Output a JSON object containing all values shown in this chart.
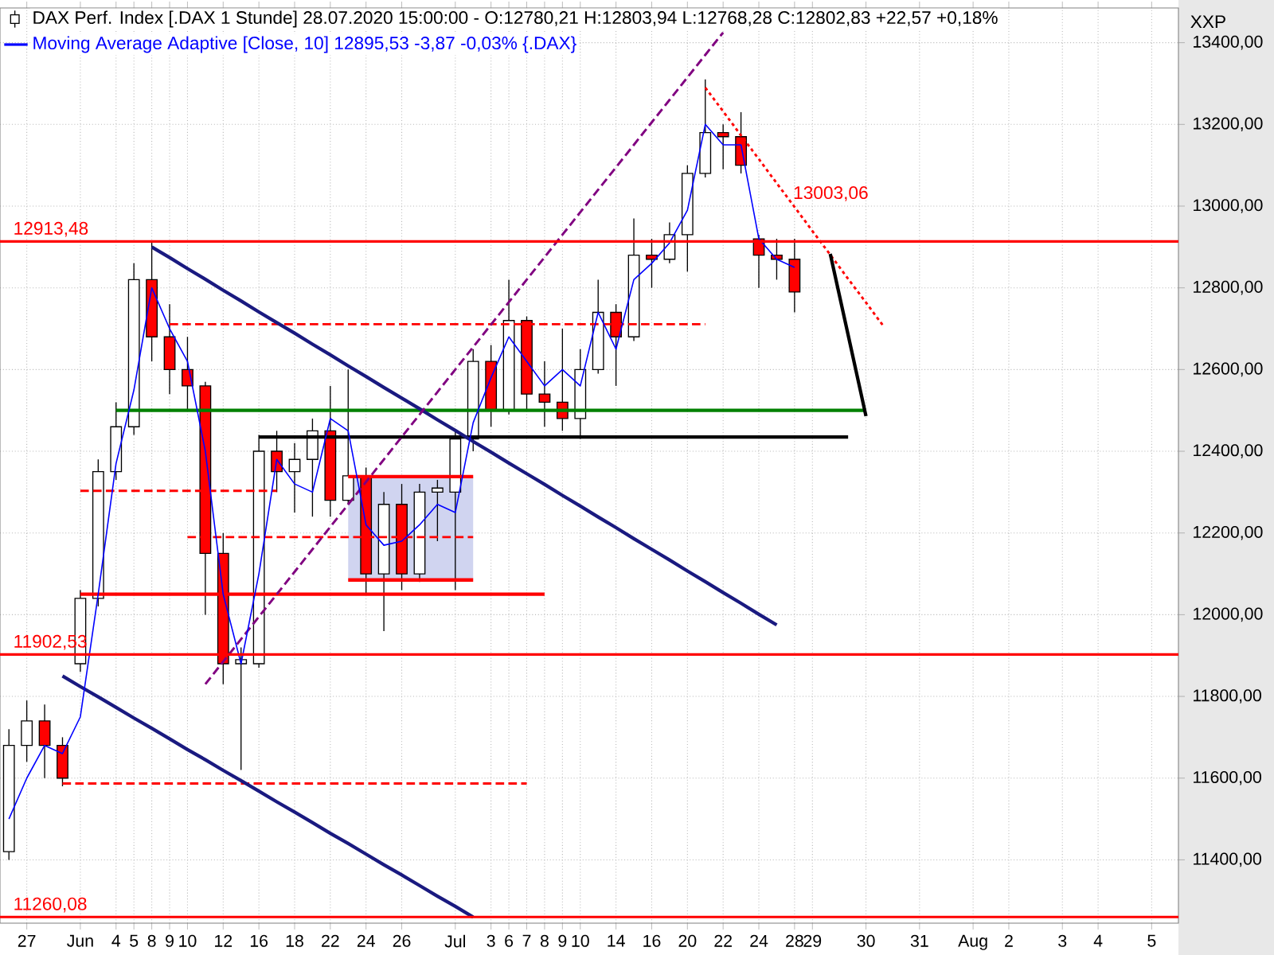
{
  "chart_data": {
    "type": "candlestick",
    "ylabel": "XXP",
    "categories": [
      null,
      "27",
      null,
      null,
      "Jun",
      null,
      "4",
      "5",
      "8",
      "9",
      "10",
      null,
      "12",
      null,
      "16",
      null,
      "18",
      null,
      "22",
      null,
      "24",
      null,
      "26",
      null,
      null,
      "Jul",
      null,
      "3",
      "6",
      "7",
      "8",
      "9",
      "10",
      null,
      "14",
      null,
      "16",
      null,
      "20",
      null,
      "22",
      null,
      "24",
      null,
      "28",
      "29",
      null,
      null,
      "30",
      null,
      null,
      "31",
      null,
      null,
      "Aug",
      null,
      "2",
      null,
      null,
      "3",
      null,
      "4",
      null,
      null,
      "5",
      null
    ],
    "ylim": [
      11245,
      13485
    ],
    "yticks": [
      {
        "value": 11400,
        "label": "11400,00"
      },
      {
        "value": 11600,
        "label": "11600,00"
      },
      {
        "value": 11800,
        "label": "11800,00"
      },
      {
        "value": 12000,
        "label": "12000,00"
      },
      {
        "value": 12200,
        "label": "12200,00"
      },
      {
        "value": 12400,
        "label": "12400,00"
      },
      {
        "value": 12600,
        "label": "12600,00"
      },
      {
        "value": 12800,
        "label": "12800,00"
      },
      {
        "value": 13000,
        "label": "13000,00"
      },
      {
        "value": 13200,
        "label": "13200,00"
      },
      {
        "value": 13400,
        "label": "13400,00"
      }
    ],
    "grid": true,
    "legend": "top left",
    "series": [
      {
        "type": "line",
        "color": "#ff0000",
        "line_style": "solid",
        "values": [
          null,
          null,
          null,
          null,
          null,
          null,
          null,
          null,
          null,
          null,
          null,
          null,
          null,
          null,
          null,
          null,
          null,
          null,
          null,
          12338,
          12338,
          12338,
          12338,
          12338,
          12338,
          12338,
          12338,
          null,
          null,
          null,
          null,
          null,
          null,
          null,
          null,
          null,
          null,
          null,
          null,
          null,
          null,
          null,
          null,
          null,
          null,
          null,
          null,
          null,
          null,
          null,
          null,
          null,
          null,
          null,
          null,
          null,
          null,
          null,
          null,
          null,
          null,
          null,
          null,
          null,
          null,
          null
        ],
        "lower": [
          null,
          null,
          null,
          null,
          null,
          null,
          null,
          null,
          null,
          null,
          null,
          null,
          null,
          null,
          null,
          null,
          null,
          null,
          null,
          12085,
          12085,
          12085,
          12085,
          12085,
          12085,
          12085,
          12085,
          null,
          null,
          null,
          null,
          null,
          null,
          null,
          null,
          null,
          null,
          null,
          null,
          null,
          null,
          null,
          null,
          null,
          null,
          null,
          null,
          null,
          null,
          null,
          null,
          null,
          null,
          null,
          null,
          null,
          null,
          null,
          null,
          null,
          null,
          null,
          null,
          null,
          null,
          null
        ],
        "upper": [
          null,
          null,
          null,
          null,
          null,
          null,
          null,
          null,
          null,
          null,
          null,
          null,
          null,
          null,
          null,
          null,
          null,
          null,
          null,
          12338,
          12338,
          12338,
          12338,
          12338,
          12338,
          12338,
          12338,
          null,
          null,
          null,
          null,
          null,
          null,
          null,
          null,
          null,
          null,
          null,
          null,
          null,
          null,
          null,
          null,
          null,
          null,
          null,
          null,
          null,
          null,
          null,
          null,
          null,
          null,
          null,
          null,
          null,
          null,
          null,
          null,
          null,
          null,
          null,
          null,
          null,
          null,
          null
        ]
      },
      {
        "type": "line",
        "color": "#ff0000",
        "line_style": "solid",
        "values": [
          null,
          null,
          null,
          null,
          null,
          null,
          null,
          null,
          null,
          null,
          null,
          null,
          null,
          null,
          null,
          null,
          null,
          null,
          null,
          12085,
          12085,
          12085,
          12085,
          12085,
          12085,
          12085,
          12085,
          null,
          null,
          null,
          null,
          null,
          null,
          null,
          null,
          null,
          null,
          null,
          null,
          null,
          null,
          null,
          null,
          null,
          null,
          null,
          null,
          null,
          null,
          null,
          null,
          null,
          null,
          null,
          null,
          null,
          null,
          null,
          null,
          null,
          null,
          null,
          null,
          null,
          null,
          null
        ]
      },
      {
        "type": "line",
        "color": "#ff0000",
        "line_style": "dashed",
        "values": [
          null,
          null,
          null,
          null,
          null,
          null,
          null,
          null,
          null,
          12711,
          12711,
          12711,
          12711,
          12711,
          12711,
          12711,
          12711,
          12711,
          12711,
          12711,
          12711,
          12711,
          12711,
          12711,
          12711,
          12711,
          12711,
          12711,
          12711,
          12711,
          12711,
          12711,
          12711,
          12711,
          12711,
          12711,
          12711,
          12711,
          12711,
          12711,
          null,
          null,
          null,
          null,
          null,
          null,
          null,
          null,
          null,
          null,
          null,
          null,
          null,
          null,
          null,
          null,
          null,
          null,
          null,
          null,
          null,
          null,
          null,
          null,
          null,
          null
        ]
      },
      {
        "type": "line",
        "color": "#ff0000",
        "line_style": "dashed",
        "values": [
          null,
          null,
          null,
          null,
          12303,
          12303,
          12303,
          12303,
          12303,
          12303,
          12303,
          12303,
          12303,
          12303,
          12303,
          12303,
          null,
          null,
          null,
          null,
          null,
          null,
          null,
          null,
          null,
          null,
          null,
          null,
          null,
          null,
          null,
          null,
          null,
          null,
          null,
          null,
          null,
          null,
          null,
          null,
          null,
          null,
          null,
          null,
          null,
          null,
          null,
          null,
          null,
          null,
          null,
          null,
          null,
          null,
          null,
          null,
          null,
          null,
          null,
          null,
          null,
          null,
          null,
          null,
          null,
          null
        ]
      },
      {
        "type": "line",
        "color": "#ff0000",
        "line_style": "dashed",
        "values": [
          null,
          null,
          null,
          null,
          null,
          null,
          null,
          null,
          null,
          null,
          12190,
          12190,
          12190,
          12190,
          12190,
          12190,
          12190,
          12190,
          12190,
          12190,
          12190,
          12190,
          12190,
          12190,
          12190,
          12190,
          12190,
          null,
          null,
          null,
          null,
          null,
          null,
          null,
          null,
          null,
          null,
          null,
          null,
          null,
          null,
          null,
          null,
          null,
          null,
          null,
          null,
          null,
          null,
          null,
          null,
          null,
          null,
          null,
          null,
          null,
          null,
          null,
          null,
          null,
          null,
          null,
          null,
          null,
          null,
          null
        ]
      },
      {
        "type": "line",
        "color": "#ff0000",
        "line_style": "dashed",
        "values": [
          null,
          null,
          null,
          11587,
          11587,
          11587,
          11587,
          11587,
          11587,
          11587,
          11587,
          11587,
          11587,
          11587,
          11587,
          11587,
          11587,
          11587,
          11587,
          11587,
          11587,
          11587,
          11587,
          11587,
          11587,
          11587,
          11587,
          11587,
          11587,
          11587,
          null,
          null,
          null,
          null,
          null,
          null,
          null,
          null,
          null,
          null,
          null,
          null,
          null,
          null,
          null,
          null,
          null,
          null,
          null,
          null,
          null,
          null,
          null,
          null,
          null,
          null,
          null,
          null,
          null,
          null,
          null,
          null,
          null,
          null,
          null,
          null
        ]
      },
      {
        "type": "line",
        "color": "#ff0000",
        "line_style": "solid",
        "values": [
          null,
          null,
          null,
          null,
          12050,
          12050,
          12050,
          12050,
          12050,
          12050,
          12050,
          12050,
          12050,
          12050,
          12050,
          12050,
          12050,
          12050,
          12050,
          12050,
          12050,
          12050,
          12050,
          12050,
          12050,
          12050,
          12050,
          12050,
          12050,
          12050,
          12050,
          null,
          null,
          null,
          null,
          null,
          null,
          null,
          null,
          null,
          null,
          null,
          null,
          null,
          null,
          null,
          null,
          null,
          null,
          null,
          null,
          null,
          null,
          null,
          null,
          null,
          null,
          null,
          null,
          null,
          null,
          null,
          null,
          null,
          null,
          null
        ]
      },
      {
        "type": "line",
        "color": "#008000",
        "line_style": "solid",
        "values": [
          null,
          null,
          null,
          null,
          null,
          null,
          12500,
          12500,
          12500,
          12500,
          12500,
          12500,
          12500,
          12500,
          12500,
          12500,
          12500,
          12500,
          12500,
          12500,
          12500,
          12500,
          12500,
          12500,
          12500,
          12500,
          12500,
          12500,
          12500,
          12500,
          12500,
          12500,
          12500,
          12500,
          12500,
          12500,
          12500,
          12500,
          12500,
          12500,
          12500,
          12500,
          12500,
          12500,
          12500,
          12500,
          12500,
          12500,
          12500,
          null,
          null,
          null,
          null,
          null,
          null,
          null,
          null,
          null,
          null,
          null,
          null,
          null,
          null,
          null,
          null,
          null
        ]
      },
      {
        "type": "line",
        "color": "#000000",
        "line_style": "solid",
        "values": [
          null,
          null,
          null,
          null,
          null,
          null,
          null,
          null,
          null,
          null,
          null,
          null,
          null,
          null,
          12435,
          12435,
          12435,
          12435,
          12435,
          12435,
          12435,
          12435,
          12435,
          12435,
          12435,
          12435,
          12435,
          12435,
          12435,
          12435,
          12435,
          12435,
          12435,
          12435,
          12435,
          12435,
          12435,
          12435,
          12435,
          12435,
          12435,
          12435,
          12435,
          12435,
          12435,
          12435,
          12435,
          12435,
          null,
          null,
          null,
          null,
          null,
          null,
          null,
          null,
          null,
          null,
          null,
          null,
          null,
          null,
          null,
          null,
          null,
          null
        ]
      },
      {
        "type": "line",
        "color": "#1a1a80",
        "line_style": "solid",
        "values": [
          null,
          null,
          null,
          null,
          null,
          null,
          null,
          null,
          12900,
          12874,
          12847,
          12821,
          12794,
          12768,
          12741,
          12715,
          12689,
          12662,
          12636,
          12609,
          12583,
          12556,
          12530,
          12504,
          12477,
          12451,
          12424,
          12398,
          12371,
          12345,
          12319,
          12292,
          12266,
          12239,
          12213,
          12186,
          12160,
          12134,
          12107,
          12081,
          12054,
          12028,
          12001,
          11975,
          null,
          null,
          null,
          null,
          null,
          null,
          null,
          null,
          null,
          null,
          null,
          null,
          null,
          null,
          null,
          null,
          null,
          null,
          null,
          null,
          null,
          null
        ]
      },
      {
        "type": "line",
        "color": "#1a1a80",
        "line_style": "solid",
        "values": [
          null,
          null,
          null,
          11850,
          11824,
          11799,
          11773,
          11747,
          11722,
          11696,
          11670,
          11645,
          11619,
          11594,
          11568,
          11542,
          11517,
          11491,
          11465,
          11440,
          11414,
          11388,
          11363,
          11337,
          11311,
          11286,
          11260,
          null,
          null,
          null,
          null,
          null,
          null,
          null,
          null,
          null,
          null,
          null,
          null,
          null,
          null,
          null,
          null,
          null,
          null,
          null,
          null,
          null,
          null,
          null,
          null,
          null,
          null,
          null,
          null,
          null,
          null,
          null,
          null,
          null,
          null,
          null,
          null,
          null,
          null,
          null
        ]
      },
      {
        "type": "line",
        "color": "#800080",
        "line_style": "dashed",
        "values": [
          null,
          null,
          null,
          null,
          null,
          null,
          null,
          null,
          null,
          null,
          null,
          11830,
          11885,
          11940,
          11995,
          12050,
          12105,
          12160,
          12215,
          12270,
          12325,
          12380,
          12435,
          12490,
          12545,
          12600,
          12655,
          12710,
          12765,
          12820,
          12875,
          12930,
          12985,
          13040,
          13095,
          13150,
          13205,
          13260,
          13315,
          13370,
          13425,
          null,
          null,
          null,
          null,
          null,
          null,
          null,
          null,
          null,
          null,
          null,
          null,
          null,
          null,
          null,
          null,
          null,
          null,
          null,
          null,
          null,
          null,
          null,
          null,
          null
        ]
      },
      {
        "type": "line",
        "color": "#ff0000",
        "line_style": "dotted",
        "values": [
          null,
          null,
          null,
          null,
          null,
          null,
          null,
          null,
          null,
          null,
          null,
          null,
          null,
          null,
          null,
          null,
          null,
          null,
          null,
          null,
          null,
          null,
          null,
          null,
          null,
          null,
          null,
          null,
          null,
          null,
          null,
          null,
          null,
          null,
          null,
          null,
          null,
          null,
          null,
          13290,
          13232,
          13173,
          13115,
          13056,
          12998,
          12939,
          12881,
          12822,
          12764,
          12705,
          null,
          null,
          null,
          null,
          null,
          null,
          null,
          null,
          null,
          null,
          null,
          null,
          null,
          null,
          null,
          null
        ]
      },
      {
        "type": "line",
        "color": "#000000",
        "line_style": "solid",
        "values": [
          null,
          null,
          null,
          null,
          null,
          null,
          null,
          null,
          null,
          null,
          null,
          null,
          null,
          null,
          null,
          null,
          null,
          null,
          null,
          null,
          null,
          null,
          null,
          null,
          null,
          null,
          null,
          null,
          null,
          null,
          null,
          null,
          null,
          null,
          null,
          null,
          null,
          null,
          null,
          null,
          null,
          null,
          null,
          null,
          null,
          null,
          12883,
          12685,
          12486,
          null,
          null,
          null,
          null,
          null,
          null,
          null,
          null,
          null,
          null,
          null,
          null,
          null,
          null,
          null,
          null,
          null
        ]
      },
      {
        "type": "line",
        "name": "Moving Average Adaptive [Close, 10] 12895,53 -3,87 -0,03% {.DAX}",
        "color": "#0000ff",
        "line_style": "solid",
        "values": [
          11500,
          11600,
          11680,
          11660,
          11750,
          12050,
          12370,
          12550,
          12800,
          12700,
          12620,
          12400,
          12050,
          11880,
          12100,
          12380,
          12320,
          12300,
          12480,
          12450,
          12220,
          12170,
          12180,
          12220,
          12270,
          12250,
          12470,
          12580,
          12680,
          12620,
          12560,
          12600,
          12560,
          12740,
          12650,
          12820,
          12860,
          12910,
          12990,
          13200,
          13150,
          13150,
          12920,
          12870,
          12850,
          null,
          null,
          null,
          null,
          null,
          null,
          null,
          null,
          null,
          null,
          null,
          null,
          null,
          null,
          null,
          null,
          null,
          null,
          null,
          null,
          null
        ]
      },
      {
        "name": "DAX Perf. Index [.DAX  1 Stunde] 28.07.2020 15:00:00 - O:12780,21 H:12803,94 L:12768,28 C:12802,83 +22,57 +0,18%",
        "color": "#000000",
        "ohlc": [
          [
            11420,
            11720,
            11400,
            11680
          ],
          [
            11680,
            11790,
            11640,
            11740
          ],
          [
            11740,
            11780,
            11600,
            11680
          ],
          [
            11680,
            11700,
            11580,
            11600
          ],
          [
            11880,
            12060,
            11860,
            12040
          ],
          [
            12040,
            12380,
            12020,
            12350
          ],
          [
            12350,
            12520,
            12330,
            12460
          ],
          [
            12460,
            12860,
            12440,
            12820
          ],
          [
            12820,
            12913,
            12620,
            12680
          ],
          [
            12680,
            12760,
            12540,
            12600
          ],
          [
            12600,
            12680,
            12500,
            12560
          ],
          [
            12560,
            12570,
            12000,
            12150
          ],
          [
            12150,
            12200,
            11830,
            11880
          ],
          [
            11880,
            11920,
            11620,
            11890
          ],
          [
            11880,
            12440,
            11870,
            12400
          ],
          [
            12400,
            12450,
            12300,
            12350
          ],
          [
            12350,
            12420,
            12250,
            12380
          ],
          [
            12380,
            12480,
            12240,
            12450
          ],
          [
            12450,
            12560,
            12240,
            12280
          ],
          [
            12280,
            12600,
            12270,
            12340
          ],
          [
            12340,
            12360,
            12050,
            12100
          ],
          [
            12100,
            12300,
            11960,
            12270
          ],
          [
            12270,
            12320,
            12060,
            12100
          ],
          [
            12100,
            12320,
            12080,
            12300
          ],
          [
            12300,
            12330,
            12180,
            12310
          ],
          [
            12300,
            12450,
            12060,
            12430
          ],
          [
            12430,
            12650,
            12400,
            12620
          ],
          [
            12620,
            12660,
            12460,
            12500
          ],
          [
            12500,
            12820,
            12490,
            12720
          ],
          [
            12720,
            12730,
            12500,
            12540
          ],
          [
            12540,
            12620,
            12460,
            12520
          ],
          [
            12520,
            12700,
            12450,
            12480
          ],
          [
            12480,
            12650,
            12430,
            12600
          ],
          [
            12600,
            12820,
            12590,
            12740
          ],
          [
            12740,
            12760,
            12560,
            12680
          ],
          [
            12680,
            12970,
            12670,
            12880
          ],
          [
            12880,
            12920,
            12800,
            12870
          ],
          [
            12870,
            12960,
            12860,
            12930
          ],
          [
            12930,
            13100,
            12840,
            13080
          ],
          [
            13080,
            13310,
            13070,
            13180
          ],
          [
            13180,
            13200,
            13090,
            13170
          ],
          [
            13170,
            13230,
            13080,
            13100
          ],
          [
            12920,
            12930,
            12800,
            12880
          ],
          [
            12880,
            12920,
            12820,
            12870
          ],
          [
            12870,
            12920,
            12740,
            12790
          ],
          null,
          null,
          null,
          null,
          null,
          null,
          null,
          null,
          null,
          null,
          null,
          null,
          null,
          null,
          null,
          null,
          null,
          null,
          null,
          null,
          null
        ]
      }
    ],
    "ref_lines": [
      {
        "axis": "y",
        "value": 12913.48,
        "label": "12913,48",
        "color": "#ff0000"
      },
      {
        "axis": "y",
        "value": 11902.53,
        "label": "11902,53",
        "color": "#ff0000"
      },
      {
        "axis": "y",
        "value": 11260.08,
        "label": "11260,08",
        "color": "#ff0000"
      }
    ],
    "annotations": [
      "13003,06"
    ]
  }
}
